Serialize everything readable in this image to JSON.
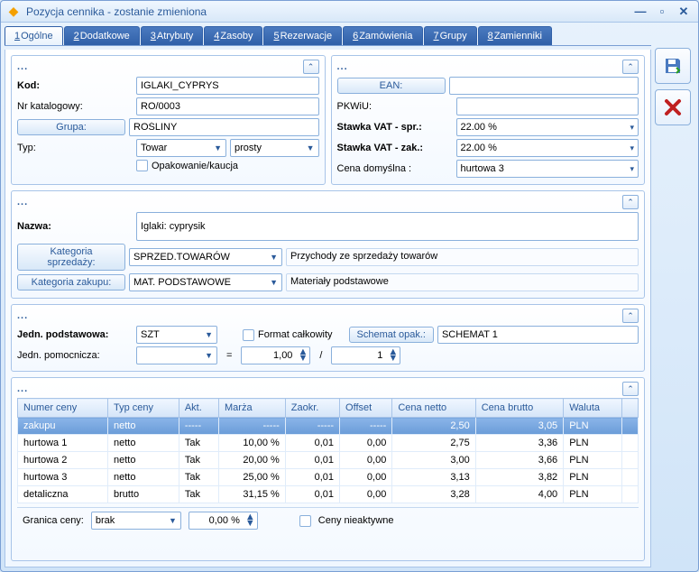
{
  "window": {
    "title": "Pozycja cennika - zostanie zmieniona"
  },
  "tabs": [
    {
      "n": "1",
      "label": "Ogólne",
      "active": true
    },
    {
      "n": "2",
      "label": "Dodatkowe"
    },
    {
      "n": "3",
      "label": "Atrybuty"
    },
    {
      "n": "4",
      "label": "Zasoby"
    },
    {
      "n": "5",
      "label": "Rezerwacje"
    },
    {
      "n": "6",
      "label": "Zamówienia"
    },
    {
      "n": "7",
      "label": "Grupy"
    },
    {
      "n": "8",
      "label": "Zamienniki"
    }
  ],
  "sec1": {
    "kod_label": "Kod:",
    "kod": "IGLAKI_CYPRYS",
    "nrkat_label": "Nr katalogowy:",
    "nrkat": "RO/0003",
    "grupa_btn": "Grupa:",
    "grupa": "ROŚLINY",
    "typ_label": "Typ:",
    "typ": "Towar",
    "typ2": "prosty",
    "opak_label": "Opakowanie/kaucja"
  },
  "sec2": {
    "ean_btn": "EAN:",
    "ean": "",
    "pkwiu_label": "PKWiU:",
    "pkwiu": "",
    "vat_spr_label": "Stawka VAT - spr.:",
    "vat_spr": "22.00 %",
    "vat_zak_label": "Stawka VAT - zak.:",
    "vat_zak": "22.00 %",
    "cena_dom_label": "Cena domyślna :",
    "cena_dom": "hurtowa 3"
  },
  "sec3": {
    "nazwa_label": "Nazwa:",
    "nazwa": "Iglaki: cyprysik",
    "kat_sprz_btn": "Kategoria sprzedaży:",
    "kat_sprz": "SPRZED.TOWARÓW",
    "kat_sprz_desc": "Przychody ze sprzedaży towarów",
    "kat_zak_btn": "Kategoria zakupu:",
    "kat_zak": "MAT. PODSTAWOWE",
    "kat_zak_desc": "Materiały podstawowe"
  },
  "sec4": {
    "jedn_pod_label": "Jedn. podstawowa:",
    "jedn_pod": "SZT",
    "format_label": "Format całkowity",
    "schemat_btn": "Schemat opak.:",
    "schemat": "SCHEMAT 1",
    "jedn_pom_label": "Jedn. pomocnicza:",
    "jedn_pom": "",
    "eq": "=",
    "val1": "1,00",
    "slash": "/",
    "val2": "1"
  },
  "table": {
    "headers": [
      "Numer ceny",
      "Typ ceny",
      "Akt.",
      "Marża",
      "Zaokr.",
      "Offset",
      "Cena netto",
      "Cena brutto",
      "Waluta"
    ],
    "rows": [
      {
        "sel": true,
        "c": [
          "zakupu",
          "netto",
          "-----",
          "-----",
          "-----",
          "-----",
          "2,50",
          "3,05",
          "PLN"
        ]
      },
      {
        "sel": false,
        "c": [
          "hurtowa 1",
          "netto",
          "Tak",
          "10,00 %",
          "0,01",
          "0,00",
          "2,75",
          "3,36",
          "PLN"
        ]
      },
      {
        "sel": false,
        "c": [
          "hurtowa 2",
          "netto",
          "Tak",
          "20,00 %",
          "0,01",
          "0,00",
          "3,00",
          "3,66",
          "PLN"
        ]
      },
      {
        "sel": false,
        "c": [
          "hurtowa 3",
          "netto",
          "Tak",
          "25,00 %",
          "0,01",
          "0,00",
          "3,13",
          "3,82",
          "PLN"
        ]
      },
      {
        "sel": false,
        "c": [
          "detaliczna",
          "brutto",
          "Tak",
          "31,15 %",
          "0,01",
          "0,00",
          "3,28",
          "4,00",
          "PLN"
        ]
      }
    ]
  },
  "bottom": {
    "granica_label": "Granica ceny:",
    "granica": "brak",
    "pct": "0,00 %",
    "ceny_nie_label": "Ceny nieaktywne"
  },
  "colors": {
    "accent": "#2a5a9a",
    "border": "#8ab0dc",
    "sel_bg": "#7aa8e0"
  }
}
